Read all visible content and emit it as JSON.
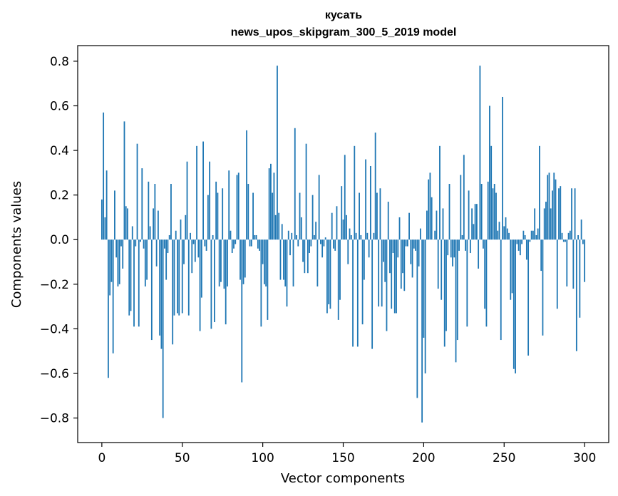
{
  "chart_data": {
    "type": "bar",
    "title": "кусать",
    "subtitle": "news_upos_skipgram_300_5_2019 model",
    "xlabel": "Vector components",
    "ylabel": "Components values",
    "xlim": [
      -15,
      315
    ],
    "ylim": [
      -0.91,
      0.87
    ],
    "xticks": [
      0,
      50,
      100,
      150,
      200,
      250,
      300
    ],
    "xtick_labels": [
      "0",
      "50",
      "100",
      "150",
      "200",
      "250",
      "300"
    ],
    "yticks": [
      0.8,
      0.6,
      0.4,
      0.2,
      0.0,
      -0.2,
      -0.4,
      -0.6,
      -0.8
    ],
    "ytick_labels": [
      "0.8",
      "0.6",
      "0.4",
      "0.2",
      "0.0",
      "−0.2",
      "−0.4",
      "−0.6",
      "−0.8"
    ],
    "bar_color": "#1f77b4",
    "values": [
      0.18,
      0.57,
      0.1,
      0.31,
      -0.62,
      -0.25,
      -0.19,
      -0.51,
      0.22,
      -0.08,
      -0.21,
      -0.2,
      -0.03,
      -0.13,
      0.53,
      0.15,
      0.14,
      -0.34,
      -0.32,
      0.06,
      -0.39,
      -0.03,
      0.43,
      -0.39,
      -0.01,
      0.32,
      -0.04,
      -0.21,
      -0.18,
      0.26,
      0.06,
      -0.45,
      0.14,
      0.25,
      -0.12,
      0.13,
      -0.43,
      -0.49,
      -0.8,
      -0.04,
      -0.18,
      -0.06,
      0.02,
      0.25,
      -0.47,
      -0.34,
      0.04,
      -0.33,
      -0.34,
      0.09,
      -0.33,
      -0.11,
      0.11,
      0.35,
      -0.34,
      0.03,
      -0.15,
      -0.02,
      -0.1,
      0.42,
      -0.08,
      -0.41,
      -0.26,
      0.44,
      -0.03,
      -0.05,
      0.2,
      0.35,
      -0.4,
      0.02,
      -0.37,
      0.26,
      0.21,
      -0.21,
      -0.19,
      0.23,
      -0.22,
      -0.38,
      -0.21,
      0.31,
      0.04,
      -0.06,
      -0.04,
      -0.02,
      0.29,
      0.3,
      -0.18,
      -0.64,
      -0.2,
      -0.17,
      0.49,
      0.25,
      -0.03,
      -0.03,
      0.21,
      0.02,
      0.02,
      -0.04,
      -0.05,
      -0.39,
      -0.11,
      -0.2,
      -0.21,
      -0.36,
      0.32,
      0.34,
      0.21,
      0.3,
      0.11,
      0.78,
      0.12,
      -0.18,
      0.07,
      -0.18,
      -0.21,
      -0.3,
      0.04,
      -0.07,
      0.03,
      -0.21,
      0.5,
      0.02,
      -0.03,
      0.21,
      0.1,
      -0.1,
      -0.15,
      0.43,
      -0.15,
      -0.06,
      -0.03,
      0.2,
      0.02,
      0.08,
      -0.21,
      0.29,
      -0.02,
      -0.08,
      -0.03,
      0.01,
      -0.33,
      -0.29,
      -0.31,
      0.12,
      -0.04,
      -0.05,
      0.15,
      -0.36,
      -0.27,
      0.24,
      0.09,
      0.38,
      0.11,
      -0.11,
      0.05,
      0.02,
      -0.48,
      0.42,
      0.03,
      -0.48,
      0.21,
      0.02,
      -0.38,
      -0.18,
      0.36,
      0.03,
      -0.08,
      0.33,
      -0.49,
      0.03,
      0.48,
      0.21,
      -0.3,
      0.23,
      -0.3,
      -0.1,
      -0.19,
      -0.41,
      0.17,
      -0.15,
      -0.31,
      -0.06,
      -0.33,
      -0.33,
      -0.08,
      0.1,
      -0.22,
      -0.15,
      -0.23,
      -0.03,
      -0.03,
      0.12,
      -0.11,
      -0.17,
      -0.04,
      -0.05,
      -0.71,
      -0.12,
      0.05,
      -0.82,
      -0.44,
      -0.6,
      0.13,
      0.27,
      0.3,
      0.19,
      0.0,
      0.04,
      0.13,
      -0.22,
      0.42,
      -0.27,
      0.14,
      -0.48,
      -0.41,
      -0.07,
      0.25,
      -0.08,
      -0.12,
      -0.08,
      -0.55,
      -0.45,
      -0.05,
      0.29,
      0.02,
      0.38,
      -0.05,
      -0.39,
      0.22,
      -0.06,
      0.14,
      0.07,
      0.16,
      0.16,
      -0.13,
      0.78,
      0.25,
      -0.04,
      -0.31,
      -0.39,
      0.26,
      0.6,
      0.42,
      0.23,
      0.25,
      0.21,
      0.04,
      0.08,
      -0.45,
      0.64,
      0.06,
      0.1,
      0.05,
      0.03,
      -0.27,
      -0.24,
      -0.58,
      -0.6,
      -0.02,
      -0.05,
      -0.07,
      -0.02,
      0.04,
      0.02,
      -0.09,
      -0.52,
      -0.01,
      0.04,
      0.04,
      0.14,
      0.02,
      0.05,
      0.42,
      -0.14,
      -0.43,
      0.14,
      0.17,
      0.29,
      0.3,
      0.14,
      0.22,
      0.3,
      0.27,
      -0.31,
      0.23,
      0.24,
      0.03,
      -0.01,
      -0.01,
      -0.21,
      0.03,
      0.04,
      0.23,
      -0.22,
      0.23,
      -0.5,
      0.02,
      -0.35,
      0.09,
      -0.02,
      -0.19
    ]
  }
}
